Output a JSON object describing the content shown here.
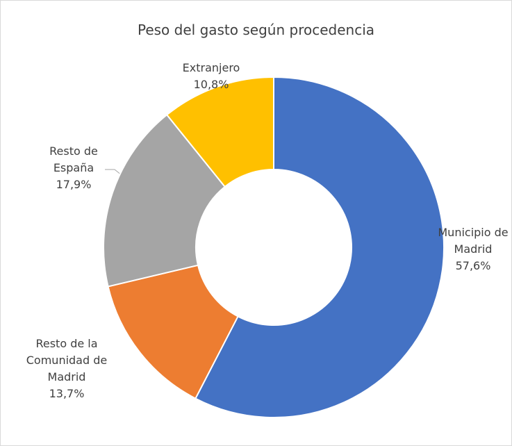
{
  "chart_data": {
    "type": "pie",
    "title": "Peso del gasto según procedencia",
    "categories": [
      "Municipio de Madrid",
      "Resto de la Comunidad de Madrid",
      "Resto de España",
      "Extranjero"
    ],
    "values": [
      57.6,
      13.7,
      17.9,
      10.8
    ],
    "value_labels": [
      "57,6%",
      "13,7%",
      "17,9%",
      "10,8%"
    ],
    "colors": [
      "#4472c4",
      "#ed7d31",
      "#a5a5a5",
      "#ffc000"
    ],
    "donut": true
  }
}
